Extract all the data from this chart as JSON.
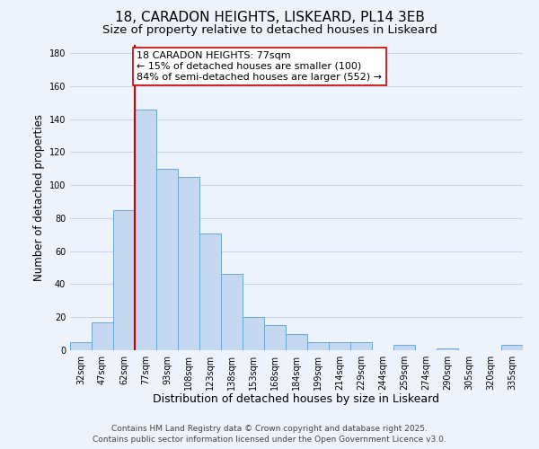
{
  "title": "18, CARADON HEIGHTS, LISKEARD, PL14 3EB",
  "subtitle": "Size of property relative to detached houses in Liskeard",
  "xlabel": "Distribution of detached houses by size in Liskeard",
  "ylabel": "Number of detached properties",
  "bar_labels": [
    "32sqm",
    "47sqm",
    "62sqm",
    "77sqm",
    "93sqm",
    "108sqm",
    "123sqm",
    "138sqm",
    "153sqm",
    "168sqm",
    "184sqm",
    "199sqm",
    "214sqm",
    "229sqm",
    "244sqm",
    "259sqm",
    "274sqm",
    "290sqm",
    "305sqm",
    "320sqm",
    "335sqm"
  ],
  "bar_values": [
    5,
    17,
    85,
    146,
    110,
    105,
    71,
    46,
    20,
    15,
    10,
    5,
    5,
    5,
    0,
    3,
    0,
    1,
    0,
    0,
    3
  ],
  "bar_color": "#c5d8f0",
  "bar_edge_color": "#6aaad4",
  "vline_color": "#cc0000",
  "vline_x_index": 3,
  "annotation_text": "18 CARADON HEIGHTS: 77sqm\n← 15% of detached houses are smaller (100)\n84% of semi-detached houses are larger (552) →",
  "annotation_box_color": "#ffffff",
  "annotation_box_edge": "#cc0000",
  "ylim": [
    0,
    185
  ],
  "yticks": [
    0,
    20,
    40,
    60,
    80,
    100,
    120,
    140,
    160,
    180
  ],
  "background_color": "#eef2fb",
  "grid_color": "#c8d4e8",
  "footer_line1": "Contains HM Land Registry data © Crown copyright and database right 2025.",
  "footer_line2": "Contains public sector information licensed under the Open Government Licence v3.0.",
  "title_fontsize": 11,
  "subtitle_fontsize": 9.5,
  "xlabel_fontsize": 9,
  "ylabel_fontsize": 8.5,
  "tick_fontsize": 7,
  "annotation_fontsize": 8,
  "footer_fontsize": 6.5
}
